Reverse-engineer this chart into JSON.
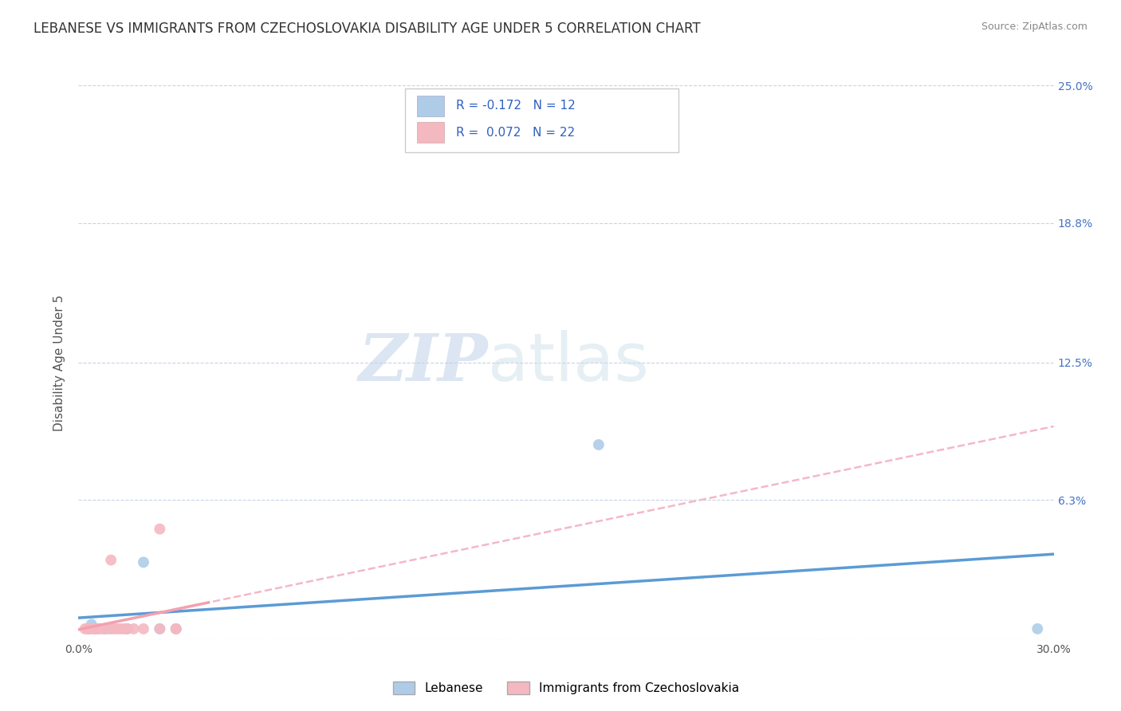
{
  "title": "LEBANESE VS IMMIGRANTS FROM CZECHOSLOVAKIA DISABILITY AGE UNDER 5 CORRELATION CHART",
  "source": "Source: ZipAtlas.com",
  "ylabel": "Disability Age Under 5",
  "xlim": [
    0.0,
    0.3
  ],
  "ylim": [
    0.0,
    0.25
  ],
  "ytick_vals": [
    0.0,
    0.063,
    0.125,
    0.188,
    0.25
  ],
  "xtick_vals": [
    0.0,
    0.3
  ],
  "right_ytick_labels": [
    "25.0%",
    "18.8%",
    "12.5%",
    "6.3%",
    ""
  ],
  "right_ytick_vals": [
    0.25,
    0.188,
    0.125,
    0.063,
    0.0
  ],
  "series1_label": "Lebanese",
  "series1_color": "#aecce8",
  "series1_R": -0.172,
  "series1_N": 12,
  "series2_label": "Immigrants from Czechoslovakia",
  "series2_color": "#f4b8c1",
  "series2_R": 0.072,
  "series2_N": 22,
  "legend_R_color": "#3060c0",
  "scatter1_x": [
    0.003,
    0.004,
    0.005,
    0.006,
    0.008,
    0.01,
    0.015,
    0.02,
    0.025,
    0.03,
    0.16,
    0.295
  ],
  "scatter1_y": [
    0.005,
    0.007,
    0.005,
    0.005,
    0.005,
    0.005,
    0.005,
    0.035,
    0.005,
    0.005,
    0.088,
    0.005
  ],
  "scatter2_x": [
    0.002,
    0.003,
    0.003,
    0.004,
    0.005,
    0.005,
    0.006,
    0.007,
    0.008,
    0.009,
    0.01,
    0.011,
    0.012,
    0.013,
    0.014,
    0.015,
    0.017,
    0.02,
    0.025,
    0.025,
    0.03,
    0.03
  ],
  "scatter2_y": [
    0.005,
    0.005,
    0.005,
    0.005,
    0.005,
    0.005,
    0.005,
    0.005,
    0.005,
    0.005,
    0.036,
    0.005,
    0.005,
    0.005,
    0.005,
    0.005,
    0.005,
    0.005,
    0.05,
    0.005,
    0.005,
    0.005
  ],
  "trendline1_color": "#5b9bd5",
  "trendline2_color": "#f4a0b0",
  "trendline2_dashed_color": "#f4b8c8",
  "background_color": "#ffffff",
  "grid_color": "#c8d4e8",
  "watermark_zip": "ZIP",
  "watermark_atlas": "atlas",
  "title_fontsize": 12,
  "axis_label_fontsize": 11,
  "tick_fontsize": 10
}
